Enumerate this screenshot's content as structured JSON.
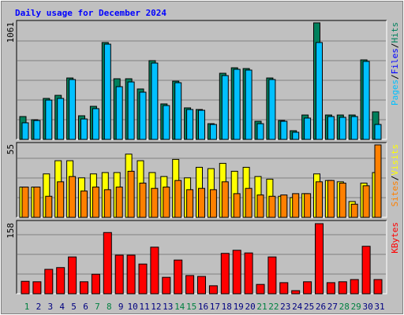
{
  "chart_data": [
    {
      "type": "bar",
      "title": "Daily usage for December 2024",
      "ylim": [
        0,
        1061
      ],
      "yticks": [
        1061
      ],
      "grid": true,
      "legend_separator": "/",
      "series": [
        {
          "name": "Pages",
          "color": "#00c0ff",
          "values": [
            151,
            172,
            358,
            373,
            545,
            186,
            280,
            867,
            480,
            523,
            430,
            695,
            308,
            516,
            272,
            265,
            136,
            581,
            638,
            631,
            143,
            545,
            165,
            65,
            194,
            882,
            208,
            201,
            208,
            710,
            136
          ]
        },
        {
          "name": "Files",
          "color": "#0000ff"
        },
        {
          "name": "Hits",
          "color": "#00805c",
          "values": [
            208,
            179,
            373,
            401,
            559,
            215,
            301,
            882,
            552,
            552,
            459,
            717,
            323,
            530,
            287,
            272,
            143,
            602,
            652,
            645,
            165,
            559,
            172,
            79,
            222,
            1061,
            222,
            222,
            222,
            724,
            251
          ]
        }
      ]
    },
    {
      "type": "bar",
      "ylim": [
        0,
        55
      ],
      "yticks": [
        55
      ],
      "grid": true,
      "legend_separator": "/",
      "series": [
        {
          "name": "Sites",
          "color": "#ff8000",
          "values": [
            23,
            23,
            16,
            27,
            31,
            20,
            23,
            21,
            23,
            35,
            26,
            22,
            23,
            28,
            21,
            22,
            21,
            27,
            18,
            22,
            17,
            16,
            17,
            18,
            18,
            27,
            28,
            26,
            10,
            24,
            55
          ]
        },
        {
          "name": "Visits",
          "color": "#ffff00",
          "values": [
            23,
            23,
            33,
            43,
            43,
            30,
            33,
            34,
            34,
            48,
            43,
            34,
            31,
            44,
            30,
            38,
            37,
            41,
            35,
            38,
            31,
            29,
            16,
            15,
            18,
            33,
            28,
            27,
            12,
            26,
            34
          ]
        }
      ]
    },
    {
      "type": "bar",
      "ylim": [
        0,
        158
      ],
      "yticks": [
        158
      ],
      "grid": true,
      "categories": [
        "1",
        "2",
        "3",
        "4",
        "5",
        "6",
        "7",
        "8",
        "9",
        "10",
        "11",
        "12",
        "13",
        "14",
        "15",
        "16",
        "17",
        "18",
        "19",
        "20",
        "21",
        "22",
        "23",
        "24",
        "25",
        "26",
        "27",
        "28",
        "29",
        "30",
        "31"
      ],
      "category_colors": [
        "#008040",
        "#000080",
        "#000080",
        "#000080",
        "#000080",
        "#000080",
        "#008040",
        "#008040",
        "#000080",
        "#000080",
        "#000080",
        "#000080",
        "#000080",
        "#008040",
        "#008040",
        "#000080",
        "#000080",
        "#000080",
        "#000080",
        "#000080",
        "#008040",
        "#008040",
        "#000080",
        "#000080",
        "#000080",
        "#000080",
        "#000080",
        "#008040",
        "#008040",
        "#000080",
        "#000080"
      ],
      "series": [
        {
          "name": "KBytes",
          "color": "#ff0000",
          "values": [
            28,
            27,
            55,
            59,
            83,
            27,
            44,
            138,
            87,
            87,
            67,
            105,
            37,
            76,
            41,
            39,
            18,
            91,
            98,
            92,
            21,
            83,
            25,
            7,
            27,
            158,
            25,
            27,
            32,
            107,
            32
          ]
        }
      ]
    }
  ]
}
